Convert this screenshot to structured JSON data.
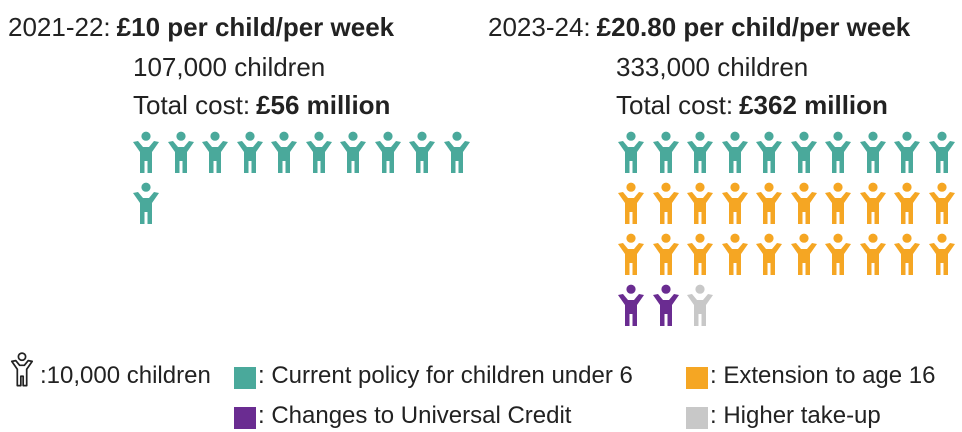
{
  "colors": {
    "current_policy": "#4aa99b",
    "extension": "#f5a623",
    "universal_credit": "#6a2c91",
    "higher_takeup": "#c8c8c8"
  },
  "chart_data": [
    {
      "type": "pictogram",
      "period": "2021-22:",
      "rate": "£10 per child/per week",
      "children_label": "107,000 children",
      "cost_prefix": "Total cost:",
      "cost_value": "£56 million",
      "unit_children": 10000,
      "series": [
        {
          "name": "Current policy for children under 6",
          "icons": 11,
          "color": "#4aa99b"
        }
      ]
    },
    {
      "type": "pictogram",
      "period": "2023-24:",
      "rate": "£20.80 per child/per week",
      "children_label": "333,000 children",
      "cost_prefix": "Total cost:",
      "cost_value": "£362 million",
      "unit_children": 10000,
      "series": [
        {
          "name": "Current policy for children under 6",
          "icons": 10,
          "color": "#4aa99b"
        },
        {
          "name": "Extension to age 16",
          "icons": 20,
          "color": "#f5a623"
        },
        {
          "name": "Changes to Universal Credit",
          "icons": 2,
          "color": "#6a2c91"
        },
        {
          "name": "Higher take-up",
          "icons": 1,
          "color": "#c8c8c8"
        }
      ]
    }
  ],
  "legend": {
    "unit_label": ":10,000 children",
    "current_policy": ": Current policy for children under 6",
    "extension": ": Extension to age 16",
    "universal_credit": ": Changes to Universal Credit",
    "higher_takeup": ": Higher take-up"
  }
}
